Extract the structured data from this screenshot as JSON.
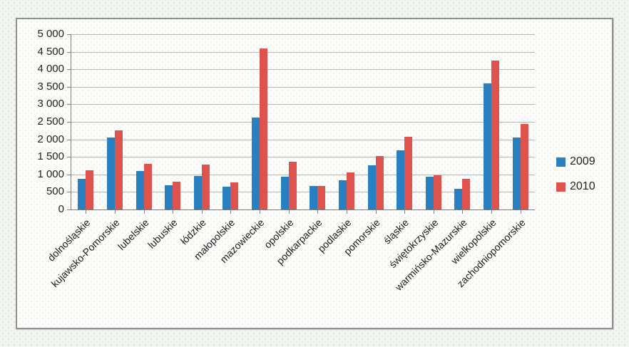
{
  "chart_data": {
    "type": "bar",
    "title": "",
    "xlabel": "",
    "ylabel": "",
    "categories": [
      "dolnośląskie",
      "kujawsko-Pomorskie",
      "lubelskie",
      "lubuskie",
      "łódzkie",
      "małopolskie",
      "mazowieckie",
      "opolskie",
      "podkarpackie",
      "podlaskie",
      "pomorskie",
      "śląskie",
      "świętokrzyskie",
      "warmińsko-Mazurskie",
      "wielkopolskie",
      "zachodniopomorskie"
    ],
    "series": [
      {
        "name": "2009",
        "color": "#2980c1",
        "values": [
          870,
          2060,
          1090,
          700,
          950,
          660,
          2620,
          930,
          670,
          830,
          1270,
          1680,
          940,
          590,
          3600,
          2050
        ]
      },
      {
        "name": "2010",
        "color": "#df534e",
        "values": [
          1110,
          2250,
          1300,
          800,
          1290,
          780,
          4590,
          1370,
          670,
          1060,
          1520,
          2070,
          980,
          870,
          4250,
          2440
        ]
      }
    ],
    "ylim": [
      0,
      5000
    ],
    "ytick_step": 500,
    "ytick_labels": [
      "0",
      "500",
      "1 000",
      "1 500",
      "2 000",
      "2 500",
      "3 000",
      "3 500",
      "4 000",
      "4 500",
      "5 000"
    ],
    "grid": true,
    "legend_position": "right",
    "colors": {
      "gridline": "#b5b5b5",
      "axis": "#7f7f7f",
      "text": "#1f1f1f"
    }
  }
}
